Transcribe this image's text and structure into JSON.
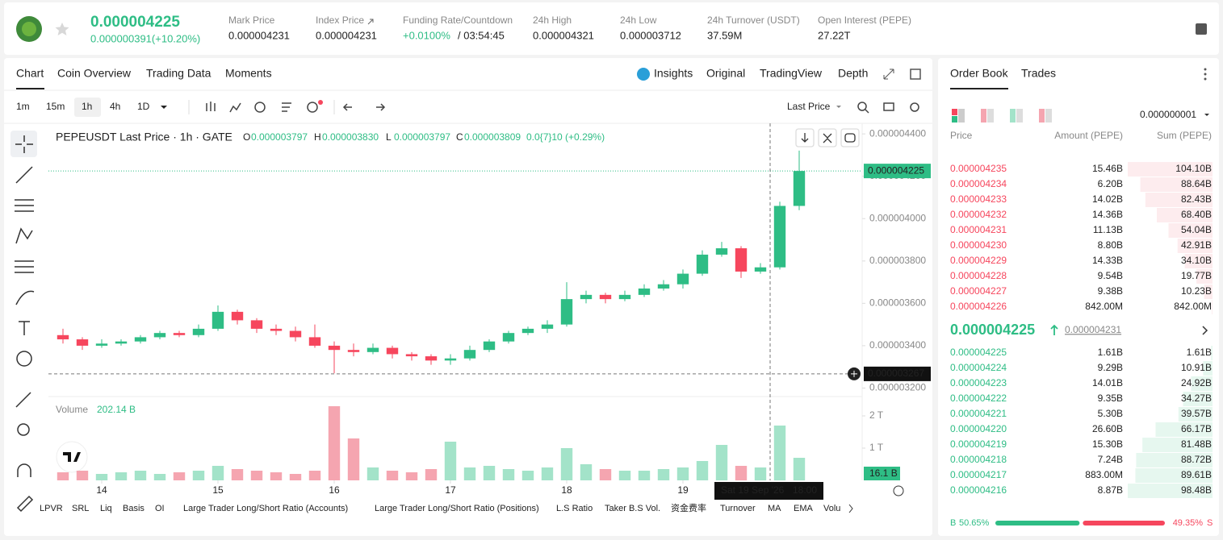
{
  "header": {
    "price": "0.000004225",
    "change": "0.000000391(+10.20%)",
    "stats": [
      {
        "label": "Mark Price",
        "value": "0.000004231"
      },
      {
        "label": "Index Price",
        "value": "0.000004231"
      },
      {
        "label": "Funding Rate/Countdown",
        "value": "+0.0100%",
        "countdown": "/ 03:54:45"
      },
      {
        "label": "24h High",
        "value": "0.000004321"
      },
      {
        "label": "24h Low",
        "value": "0.000003712"
      },
      {
        "label": "24h Turnover (USDT)",
        "value": "37.59M"
      },
      {
        "label": "Open Interest (PEPE)",
        "value": "27.22T"
      }
    ]
  },
  "tabs": [
    "Chart",
    "Coin Overview",
    "Trading Data",
    "Moments"
  ],
  "view_tabs": [
    "Insights",
    "Original",
    "TradingView",
    "Depth"
  ],
  "intervals": [
    "1m",
    "15m",
    "1h",
    "4h",
    "1D"
  ],
  "price_type": "Last Price",
  "chart_data": {
    "type": "candlestick",
    "legend_title": "PEPEUSDT Last Price · 1h · GATE",
    "ohlc_labels": [
      {
        "key": "O",
        "value": "0.000003797"
      },
      {
        "key": "H",
        "value": "0.000003830"
      },
      {
        "key": "L",
        "value": "0.000003797"
      },
      {
        "key": "C",
        "value": "0.000003809"
      }
    ],
    "change_label": "0.0{7}10 (+0.29%)",
    "x": [
      -8,
      -4,
      0,
      4,
      8,
      12,
      16,
      20,
      24,
      28,
      32,
      36,
      40,
      44,
      48,
      52,
      56,
      60,
      64,
      68,
      72,
      76,
      80,
      84,
      88,
      92,
      96,
      100,
      104,
      108,
      112,
      116,
      120,
      124,
      128,
      132,
      136,
      140,
      144
    ],
    "open": [
      3.45e-06,
      3.43e-06,
      3.4e-06,
      3.41e-06,
      3.42e-06,
      3.44e-06,
      3.46e-06,
      3.45e-06,
      3.48e-06,
      3.56e-06,
      3.52e-06,
      3.48e-06,
      3.47e-06,
      3.44e-06,
      3.4e-06,
      3.38e-06,
      3.37e-06,
      3.39e-06,
      3.36e-06,
      3.35e-06,
      3.33e-06,
      3.34e-06,
      3.38e-06,
      3.42e-06,
      3.46e-06,
      3.48e-06,
      3.5e-06,
      3.62e-06,
      3.64e-06,
      3.62e-06,
      3.64e-06,
      3.67e-06,
      3.69e-06,
      3.74e-06,
      3.83e-06,
      3.86e-06,
      3.75e-06,
      3.77e-06,
      4.06e-06
    ],
    "high": [
      3.48e-06,
      3.44e-06,
      3.43e-06,
      3.43e-06,
      3.45e-06,
      3.47e-06,
      3.47e-06,
      3.5e-06,
      3.59e-06,
      3.57e-06,
      3.53e-06,
      3.5e-06,
      3.49e-06,
      3.5e-06,
      3.42e-06,
      3.41e-06,
      3.41e-06,
      3.4e-06,
      3.37e-06,
      3.36e-06,
      3.36e-06,
      3.4e-06,
      3.43e-06,
      3.47e-06,
      3.49e-06,
      3.52e-06,
      3.7e-06,
      3.66e-06,
      3.65e-06,
      3.66e-06,
      3.69e-06,
      3.71e-06,
      3.76e-06,
      3.85e-06,
      3.89e-06,
      3.87e-06,
      3.79e-06,
      4.08e-06,
      4.321e-06
    ],
    "low": [
      3.41e-06,
      3.38e-06,
      3.39e-06,
      3.4e-06,
      3.41e-06,
      3.43e-06,
      3.44e-06,
      3.44e-06,
      3.47e-06,
      3.5e-06,
      3.46e-06,
      3.45e-06,
      3.42e-06,
      3.39e-06,
      3.27e-06,
      3.35e-06,
      3.36e-06,
      3.34e-06,
      3.33e-06,
      3.31e-06,
      3.31e-06,
      3.33e-06,
      3.37e-06,
      3.41e-06,
      3.45e-06,
      3.46e-06,
      3.49e-06,
      3.6e-06,
      3.6e-06,
      3.61e-06,
      3.63e-06,
      3.66e-06,
      3.67e-06,
      3.73e-06,
      3.82e-06,
      3.72e-06,
      3.74e-06,
      3.76e-06,
      4.04e-06
    ],
    "close": [
      3.43e-06,
      3.4e-06,
      3.41e-06,
      3.42e-06,
      3.44e-06,
      3.46e-06,
      3.45e-06,
      3.48e-06,
      3.56e-06,
      3.52e-06,
      3.48e-06,
      3.47e-06,
      3.44e-06,
      3.4e-06,
      3.38e-06,
      3.37e-06,
      3.39e-06,
      3.36e-06,
      3.35e-06,
      3.33e-06,
      3.34e-06,
      3.38e-06,
      3.42e-06,
      3.46e-06,
      3.48e-06,
      3.5e-06,
      3.62e-06,
      3.64e-06,
      3.62e-06,
      3.64e-06,
      3.67e-06,
      3.69e-06,
      3.74e-06,
      3.83e-06,
      3.86e-06,
      3.75e-06,
      3.77e-06,
      4.06e-06,
      4.225e-06
    ],
    "up_color": "#2ebd85",
    "down_color": "#f6465d",
    "xlim": [
      -11,
      157
    ],
    "xticks": [
      {
        "value": 0,
        "label": "14"
      },
      {
        "value": 24,
        "label": "15"
      },
      {
        "value": 48,
        "label": "16"
      },
      {
        "value": 72,
        "label": "17"
      },
      {
        "value": 96,
        "label": "18"
      },
      {
        "value": 120,
        "label": "19"
      }
    ],
    "ylim": [
      3.16e-06,
      4.45e-06
    ],
    "yticks": [
      {
        "value": 4.4e-06,
        "label": "0.000004400"
      },
      {
        "value": 4.2e-06,
        "label": "0.000004200"
      },
      {
        "value": 4e-06,
        "label": "0.000004000"
      },
      {
        "value": 3.8e-06,
        "label": "0.000003800"
      },
      {
        "value": 3.6e-06,
        "label": "0.000003600"
      },
      {
        "value": 3.4e-06,
        "label": "0.000003400"
      },
      {
        "value": 3.2e-06,
        "label": "0.000003200"
      }
    ],
    "last_price": 4.225e-06,
    "crosshair": {
      "x": 138,
      "y": 3.267e-06,
      "x_label": "Sat 19 Sep '26",
      "time_label": "18:00"
    },
    "volume": {
      "title": "Volume",
      "current": "202.14 B",
      "last_label": "16.1 B",
      "up_color": "#a3e3c9",
      "down_color": "#f5a5b0",
      "values": [
        0.25,
        0.3,
        0.2,
        0.25,
        0.3,
        0.2,
        0.25,
        0.3,
        0.45,
        0.35,
        0.3,
        0.25,
        0.2,
        0.3,
        2.3,
        1.3,
        0.4,
        0.3,
        0.25,
        0.35,
        1.2,
        0.4,
        0.45,
        0.35,
        0.3,
        0.4,
        1.0,
        0.5,
        0.35,
        0.3,
        0.3,
        0.35,
        0.4,
        0.6,
        1.1,
        0.45,
        0.4,
        1.7,
        0.7
      ],
      "ylim": [
        0,
        2.45
      ],
      "yticks": [
        {
          "value": 1,
          "label": "1 T"
        },
        {
          "value": 2,
          "label": "2 T"
        }
      ]
    }
  },
  "indicators": [
    "LPVR",
    "SRL",
    "Liq",
    "Basis",
    "OI",
    "Large Trader Long/Short Ratio (Accounts)",
    "Large Trader Long/Short Ratio (Positions)",
    "L.S Ratio",
    "Taker B.S Vol.",
    "资金费率",
    "Turnover",
    "MA",
    "EMA",
    "Volu"
  ],
  "order_book": {
    "tabs": [
      "Order Book",
      "Trades"
    ],
    "precision": "0.000000001",
    "columns": [
      "Price",
      "Amount (PEPE)",
      "Sum (PEPE)"
    ],
    "asks": [
      [
        "0.000004235",
        "15.46B",
        "104.10B"
      ],
      [
        "0.000004234",
        "6.20B",
        "88.64B"
      ],
      [
        "0.000004233",
        "14.02B",
        "82.43B"
      ],
      [
        "0.000004232",
        "14.36B",
        "68.40B"
      ],
      [
        "0.000004231",
        "11.13B",
        "54.04B"
      ],
      [
        "0.000004230",
        "8.80B",
        "42.91B"
      ],
      [
        "0.000004229",
        "14.33B",
        "34.10B"
      ],
      [
        "0.000004228",
        "9.54B",
        "19.77B"
      ],
      [
        "0.000004227",
        "9.38B",
        "10.23B"
      ],
      [
        "0.000004226",
        "842.00M",
        "842.00M"
      ]
    ],
    "mid_price": "0.000004225",
    "mark_price": "0.000004231",
    "bids": [
      [
        "0.000004225",
        "1.61B",
        "1.61B"
      ],
      [
        "0.000004224",
        "9.29B",
        "10.91B"
      ],
      [
        "0.000004223",
        "14.01B",
        "24.92B"
      ],
      [
        "0.000004222",
        "9.35B",
        "34.27B"
      ],
      [
        "0.000004221",
        "5.30B",
        "39.57B"
      ],
      [
        "0.000004220",
        "26.60B",
        "66.17B"
      ],
      [
        "0.000004219",
        "15.30B",
        "81.48B"
      ],
      [
        "0.000004218",
        "7.24B",
        "88.72B"
      ],
      [
        "0.000004217",
        "883.00M",
        "89.61B"
      ],
      [
        "0.000004216",
        "8.87B",
        "98.48B"
      ]
    ],
    "ratio": {
      "buy_key": "B",
      "buy": {
        "value": 50.65,
        "label": "50.65%"
      },
      "sell": {
        "value": 49.35,
        "label": "49.35%"
      },
      "sell_key": "S"
    }
  }
}
